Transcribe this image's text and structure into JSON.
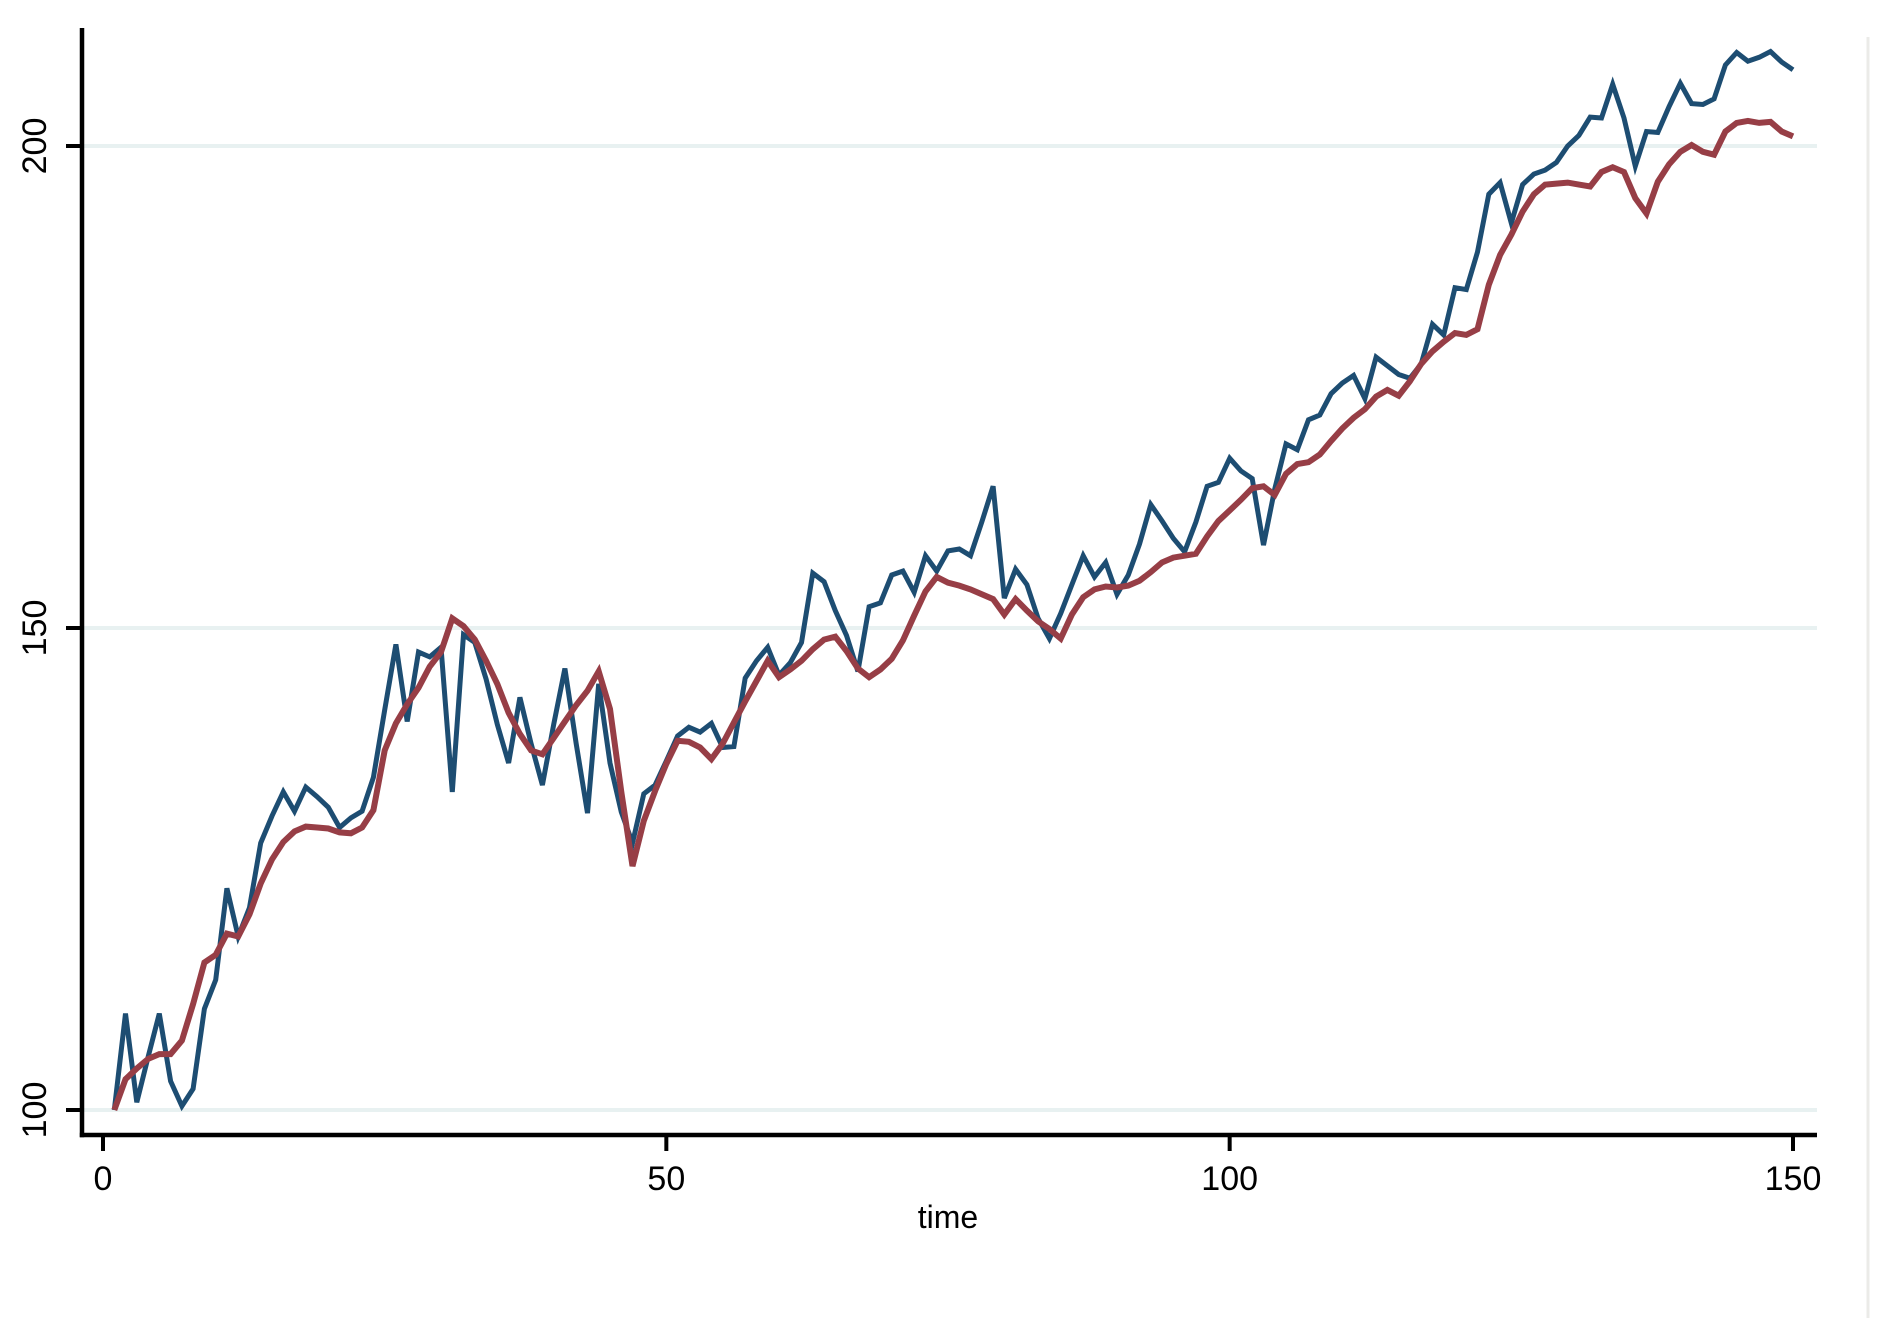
{
  "chart_data": {
    "type": "line",
    "title": "",
    "xlabel": "time",
    "ylabel": "",
    "grid": "horizontal",
    "legend_position": "none",
    "xticks": [
      0,
      50,
      100,
      150
    ],
    "xtick_labels": [
      "0",
      "50",
      "100",
      "150"
    ],
    "yticks": [
      100,
      150,
      200
    ],
    "ytick_labels": [
      "100",
      "150",
      "200"
    ],
    "xlim": [
      0,
      152
    ],
    "ylim": [
      97,
      212
    ],
    "x_start": 1,
    "x_step": 1,
    "grid_color": "#e8f1f1",
    "axis_color": "#000000",
    "series": [
      {
        "name": "navy-line",
        "color": "#1d4d72",
        "width": 5,
        "values": [
          100.0,
          110.0,
          100.8,
          105.5,
          110.0,
          103.0,
          100.4,
          102.2,
          110.5,
          113.5,
          123.0,
          118.0,
          121.0,
          127.7,
          130.5,
          133.0,
          131.0,
          133.5,
          132.5,
          131.4,
          129.3,
          130.3,
          131.0,
          134.5,
          141.5,
          148.3,
          140.3,
          147.5,
          147.0,
          148.0,
          133.0,
          149.3,
          148.5,
          144.7,
          140.0,
          136.0,
          142.8,
          138.0,
          133.7,
          140.0,
          145.8,
          138.0,
          130.8,
          144.2,
          136.0,
          130.9,
          127.7,
          132.8,
          133.7,
          136.2,
          138.8,
          139.7,
          139.2,
          140.1,
          137.6,
          137.7,
          144.8,
          146.6,
          148.0,
          145.1,
          146.4,
          148.5,
          155.7,
          154.8,
          151.8,
          149.2,
          145.5,
          152.2,
          152.6,
          155.5,
          155.9,
          153.7,
          157.5,
          155.9,
          158.0,
          158.2,
          157.5,
          161.0,
          164.7,
          153.1,
          156.1,
          154.5,
          151.0,
          148.9,
          151.5,
          154.5,
          157.5,
          155.3,
          156.8,
          153.5,
          155.5,
          158.7,
          162.8,
          161.1,
          159.3,
          157.9,
          161.0,
          164.7,
          165.1,
          167.6,
          166.3,
          165.5,
          158.6,
          164.4,
          169.1,
          168.5,
          171.6,
          172.1,
          174.3,
          175.4,
          176.2,
          173.8,
          178.1,
          177.2,
          176.3,
          175.9,
          177.4,
          181.5,
          180.4,
          185.3,
          185.1,
          189.0,
          195.0,
          196.2,
          192.0,
          196.0,
          197.1,
          197.5,
          198.3,
          200.0,
          201.1,
          203.0,
          202.9,
          206.4,
          202.9,
          197.9,
          201.5,
          201.4,
          204.1,
          206.5,
          204.4,
          204.3,
          204.9,
          208.4,
          209.7,
          208.8,
          209.2,
          209.8,
          208.7,
          207.9
        ]
      },
      {
        "name": "maroon-line",
        "color": "#973e46",
        "width": 6,
        "values": [
          100.0,
          103.2,
          104.3,
          105.3,
          105.8,
          105.8,
          107.2,
          111.0,
          115.3,
          116.1,
          118.3,
          118.0,
          120.3,
          123.5,
          126.0,
          127.8,
          128.9,
          129.4,
          129.3,
          129.2,
          128.8,
          128.7,
          129.3,
          131.1,
          137.3,
          140.1,
          142.1,
          143.8,
          146.0,
          147.5,
          151.0,
          150.2,
          148.8,
          146.6,
          144.2,
          141.2,
          139.0,
          137.3,
          136.9,
          138.6,
          140.3,
          142.0,
          143.5,
          145.5,
          141.6,
          133.0,
          125.3,
          130.0,
          133.1,
          135.9,
          138.3,
          138.2,
          137.6,
          136.4,
          138.0,
          140.2,
          142.4,
          144.5,
          146.6,
          144.9,
          145.7,
          146.6,
          147.8,
          148.8,
          149.1,
          147.6,
          145.8,
          144.9,
          145.7,
          146.8,
          148.7,
          151.3,
          153.8,
          155.3,
          154.7,
          154.4,
          154.0,
          153.5,
          153.0,
          151.4,
          153.0,
          151.8,
          150.7,
          149.9,
          148.9,
          151.4,
          153.2,
          154.0,
          154.3,
          154.2,
          154.4,
          154.9,
          155.8,
          156.8,
          157.3,
          157.5,
          157.7,
          159.5,
          161.1,
          162.2,
          163.3,
          164.5,
          164.7,
          163.8,
          166.0,
          167.0,
          167.2,
          168.0,
          169.4,
          170.7,
          171.8,
          172.7,
          174.0,
          174.7,
          174.1,
          175.6,
          177.4,
          178.7,
          179.7,
          180.6,
          180.4,
          181.0,
          185.6,
          188.7,
          190.8,
          193.2,
          195.0,
          196.0,
          196.1,
          196.2,
          196.0,
          195.8,
          197.3,
          197.8,
          197.3,
          194.6,
          193.0,
          196.3,
          198.1,
          199.4,
          200.1,
          199.4,
          199.1,
          201.5,
          202.4,
          202.6,
          202.4,
          202.5,
          201.5,
          201.0
        ]
      }
    ]
  }
}
